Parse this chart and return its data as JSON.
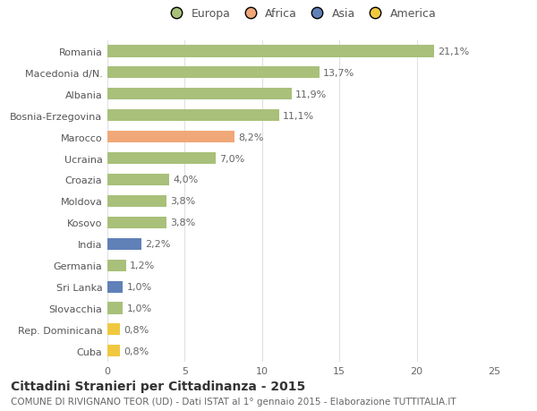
{
  "countries": [
    "Romania",
    "Macedonia d/N.",
    "Albania",
    "Bosnia-Erzegovina",
    "Marocco",
    "Ucraina",
    "Croazia",
    "Moldova",
    "Kosovo",
    "India",
    "Germania",
    "Sri Lanka",
    "Slovacchia",
    "Rep. Dominicana",
    "Cuba"
  ],
  "values": [
    21.1,
    13.7,
    11.9,
    11.1,
    8.2,
    7.0,
    4.0,
    3.8,
    3.8,
    2.2,
    1.2,
    1.0,
    1.0,
    0.8,
    0.8
  ],
  "labels": [
    "21,1%",
    "13,7%",
    "11,9%",
    "11,1%",
    "8,2%",
    "7,0%",
    "4,0%",
    "3,8%",
    "3,8%",
    "2,2%",
    "1,2%",
    "1,0%",
    "1,0%",
    "0,8%",
    "0,8%"
  ],
  "continents": [
    "Europa",
    "Europa",
    "Europa",
    "Europa",
    "Africa",
    "Europa",
    "Europa",
    "Europa",
    "Europa",
    "Asia",
    "Europa",
    "Asia",
    "Europa",
    "America",
    "America"
  ],
  "colors": {
    "Europa": "#a8c07a",
    "Africa": "#f0a878",
    "Asia": "#6080b8",
    "America": "#f0c840"
  },
  "legend_order": [
    "Europa",
    "Africa",
    "Asia",
    "America"
  ],
  "legend_colors_circle": {
    "Europa": "#a8c07a",
    "Africa": "#f0a878",
    "Asia": "#5070b0",
    "America": "#f0c840"
  },
  "xlim": [
    0,
    25
  ],
  "xticks": [
    0,
    5,
    10,
    15,
    20,
    25
  ],
  "title": "Cittadini Stranieri per Cittadinanza - 2015",
  "subtitle": "COMUNE DI RIVIGNANO TEOR (UD) - Dati ISTAT al 1° gennaio 2015 - Elaborazione TUTTITALIA.IT",
  "bg_color": "#ffffff",
  "grid_color": "#e0e0e0",
  "bar_height": 0.55,
  "title_fontsize": 10,
  "subtitle_fontsize": 7.5,
  "label_fontsize": 8,
  "tick_fontsize": 8,
  "legend_fontsize": 9
}
